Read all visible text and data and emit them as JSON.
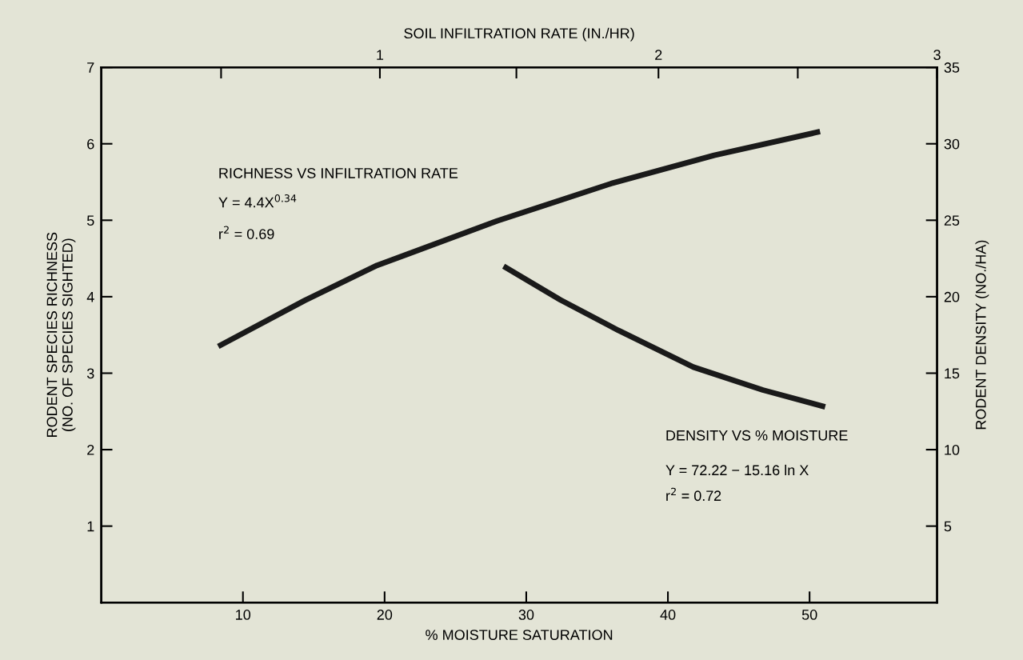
{
  "chart_data": {
    "type": "line",
    "xlabel": "% MOISTURE SATURATION",
    "ylabel": "RODENT SPECIES RICHNESS\n(NO. OF SPECIES SIGHTED)",
    "y2label": "RODENT DENSITY (NO./HA)",
    "x2label": "SOIL INFILTRATION RATE (IN./HR)",
    "xlim": [
      0,
      59
    ],
    "xticks": [
      10,
      20,
      30,
      40,
      50
    ],
    "x2lim": [
      0,
      3
    ],
    "x2ticks": [
      {
        "value": 0.43,
        "label": null
      },
      1,
      {
        "value": 1.49,
        "label": null
      },
      2,
      {
        "value": 2.5,
        "label": null
      },
      3
    ],
    "ylim": [
      0,
      7
    ],
    "yticks": [
      1,
      2,
      3,
      4,
      5,
      6,
      7
    ],
    "y2lim": [
      0,
      35
    ],
    "y2ticks": [
      5,
      10,
      15,
      20,
      25,
      30,
      35
    ],
    "grid": false,
    "legend": false,
    "marker": "none",
    "line_style": "solid",
    "series": [
      {
        "axis": "x2",
        "color": "#1a1a1a",
        "x": [
          0.42,
          0.73,
          0.99,
          1.42,
          1.83,
          2.2,
          2.58
        ],
        "values": [
          3.35,
          3.95,
          4.41,
          4.99,
          5.48,
          5.85,
          6.16
        ]
      },
      {
        "axis": "y2",
        "color": "#1a1a1a",
        "x": [
          28.4,
          32.4,
          36.5,
          41.8,
          46.7,
          51.1
        ],
        "values": [
          22.0,
          19.8,
          17.8,
          15.4,
          13.9,
          12.8
        ]
      }
    ],
    "annotations": [
      "RICHNESS VS INFILTRATION RATE",
      "Y = 4.4X$^{0.34}$",
      "r$^{2}$ = 0.69",
      "DENSITY VS % MOISTURE",
      "Y = 72.22 − 15.16 ln X",
      "r$^{2}$ = 0.72"
    ]
  }
}
